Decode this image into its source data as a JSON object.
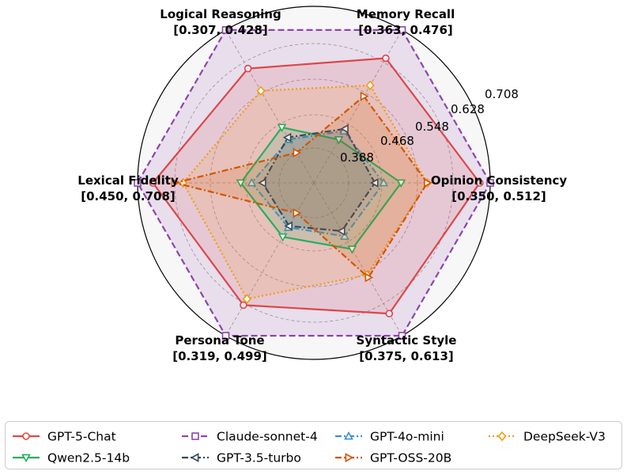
{
  "chart_data": {
    "type": "radar",
    "ring_labels": [
      "0.388",
      "0.468",
      "0.548",
      "0.628",
      "0.708"
    ],
    "axes": [
      {
        "name": "Opinion Consistency",
        "range": "[0.350, 0.512]",
        "min": 0.35,
        "max": 0.512
      },
      {
        "name": "Memory Recall",
        "range": "[0.363, 0.476]",
        "min": 0.363,
        "max": 0.476
      },
      {
        "name": "Logical Reasoning",
        "range": "[0.307, 0.428]",
        "min": 0.307,
        "max": 0.428
      },
      {
        "name": "Lexical Fidelity",
        "range": "[0.450, 0.708]",
        "min": 0.45,
        "max": 0.708
      },
      {
        "name": "Persona Tone",
        "range": "[0.319, 0.499]",
        "min": 0.319,
        "max": 0.499
      },
      {
        "name": "Syntactic Style",
        "range": "[0.375, 0.613]",
        "min": 0.375,
        "max": 0.613
      }
    ],
    "series": [
      {
        "name": "GPT-5-Chat",
        "color": "#e8483c",
        "marker": "circle",
        "dash": "solid",
        "values": [
          0.5,
          0.45,
          0.39,
          0.68,
          0.454,
          0.57
        ]
      },
      {
        "name": "Claude-sonnet-4",
        "color": "#8e44ad",
        "marker": "square",
        "dash": "dashed",
        "values": [
          0.512,
          0.476,
          0.428,
          0.708,
          0.499,
          0.613
        ]
      },
      {
        "name": "GPT-4o-mini",
        "color": "#3a8fd4",
        "marker": "triangle-up",
        "dash": "dashdot",
        "values": [
          0.39,
          0.383,
          0.32,
          0.5,
          0.34,
          0.42
        ]
      },
      {
        "name": "DeepSeek-V3",
        "color": "#f39c12",
        "marker": "diamond",
        "dash": "dotted",
        "values": [
          0.44,
          0.425,
          0.368,
          0.625,
          0.445,
          0.495
        ]
      },
      {
        "name": "Qwen2.5-14b",
        "color": "#27ae60",
        "marker": "triangle-down",
        "dash": "solid",
        "values": [
          0.41,
          0.375,
          0.332,
          0.52,
          0.354,
          0.445
        ]
      },
      {
        "name": "GPT-3.5-turbo",
        "color": "#34495e",
        "marker": "triangle-left",
        "dash": "dashdot",
        "values": [
          0.38,
          0.385,
          0.322,
          0.48,
          0.338,
          0.41
        ]
      },
      {
        "name": "GPT-OSS-20B",
        "color": "#d35400",
        "marker": "triangle-right",
        "dash": "dashdot",
        "values": [
          0.44,
          0.415,
          0.307,
          0.64,
          0.319,
          0.5
        ]
      }
    ],
    "legend": {
      "placement": "bottom",
      "columns": 4
    }
  }
}
